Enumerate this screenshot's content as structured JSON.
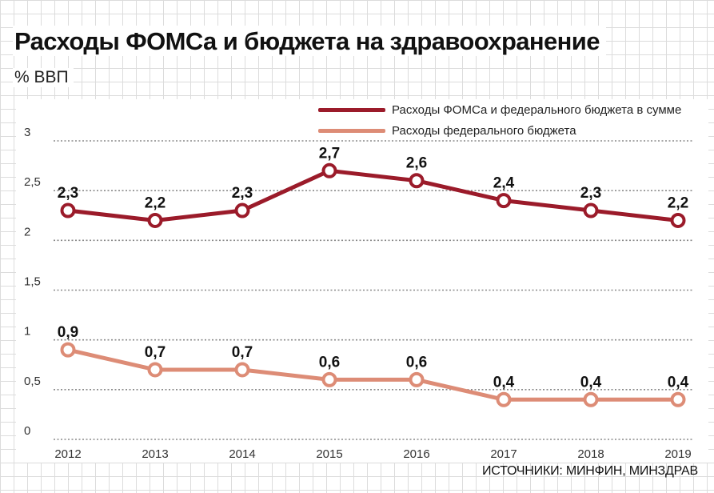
{
  "chart_data": {
    "type": "line",
    "title": "Расходы ФОМСа и бюджета на здравоохранение",
    "subtitle": "% ВВП",
    "categories": [
      "2012",
      "2013",
      "2014",
      "2015",
      "2016",
      "2017",
      "2018",
      "2019"
    ],
    "ylim": [
      0,
      3
    ],
    "yticks": [
      "0",
      "0,5",
      "1",
      "1,5",
      "2",
      "2,5",
      "3"
    ],
    "ytick_values": [
      0,
      0.5,
      1,
      1.5,
      2,
      2.5,
      3
    ],
    "grid": "horizontal dotted",
    "legend_position": "top-right",
    "series": [
      {
        "name": "Расходы ФОМСа и федерального бюджета в сумме",
        "color": "#9b1b2a",
        "values": [
          2.3,
          2.2,
          2.3,
          2.7,
          2.6,
          2.4,
          2.3,
          2.2
        ],
        "labels": [
          "2,3",
          "2,2",
          "2,3",
          "2,7",
          "2,6",
          "2,4",
          "2,3",
          "2,2"
        ]
      },
      {
        "name": "Расходы федерального бюджета",
        "color": "#dd8c76",
        "values": [
          0.9,
          0.7,
          0.7,
          0.6,
          0.6,
          0.4,
          0.4,
          0.4
        ],
        "labels": [
          "0,9",
          "0,7",
          "0,7",
          "0,6",
          "0,6",
          "0,4",
          "0,4",
          "0,4"
        ]
      }
    ],
    "source": "ИСТОЧНИКИ: МИНФИН, МИНЗДРАВ"
  }
}
